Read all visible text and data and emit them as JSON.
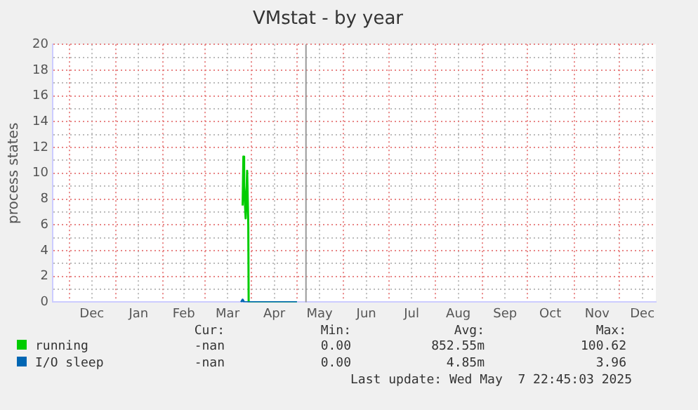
{
  "chart_data": {
    "type": "line",
    "title": "VMstat - by year",
    "ylabel": "process states",
    "xlim": [
      "2024-11-20",
      "2025-12-25"
    ],
    "xticks": [
      {
        "value": "2024-12-01",
        "label": null
      },
      {
        "value": "2024-12-16",
        "label": "Dec"
      },
      {
        "value": "2025-01-01",
        "label": null
      },
      {
        "value": "2025-01-16",
        "label": "Jan"
      },
      {
        "value": "2025-02-01",
        "label": null
      },
      {
        "value": "2025-02-15",
        "label": "Feb"
      },
      {
        "value": "2025-03-01",
        "label": null
      },
      {
        "value": "2025-03-16",
        "label": "Mar"
      },
      {
        "value": "2025-04-01",
        "label": null
      },
      {
        "value": "2025-04-16",
        "label": "Apr"
      },
      {
        "value": "2025-05-01",
        "label": null
      },
      {
        "value": "2025-05-16",
        "label": "May"
      },
      {
        "value": "2025-06-01",
        "label": null
      },
      {
        "value": "2025-06-16",
        "label": "Jun"
      },
      {
        "value": "2025-07-01",
        "label": null
      },
      {
        "value": "2025-07-16",
        "label": "Jul"
      },
      {
        "value": "2025-08-01",
        "label": null
      },
      {
        "value": "2025-08-16",
        "label": "Aug"
      },
      {
        "value": "2025-09-01",
        "label": null
      },
      {
        "value": "2025-09-16",
        "label": "Sep"
      },
      {
        "value": "2025-10-01",
        "label": null
      },
      {
        "value": "2025-10-16",
        "label": "Oct"
      },
      {
        "value": "2025-11-01",
        "label": null
      },
      {
        "value": "2025-11-16",
        "label": "Nov"
      },
      {
        "value": "2025-12-01",
        "label": null
      },
      {
        "value": "2025-12-16",
        "label": "Dec"
      }
    ],
    "ylim": [
      0,
      20
    ],
    "yticks": [
      0,
      {
        "value": 1,
        "label": null
      },
      2,
      {
        "value": 3,
        "label": null
      },
      4,
      {
        "value": 5,
        "label": null
      },
      6,
      {
        "value": 7,
        "label": null
      },
      8,
      {
        "value": 9,
        "label": null
      },
      10,
      {
        "value": 11,
        "label": null
      },
      12,
      {
        "value": 13,
        "label": null
      },
      14,
      {
        "value": 15,
        "label": null
      },
      16,
      {
        "value": 17,
        "label": null
      },
      18,
      {
        "value": 19,
        "label": null
      },
      20
    ],
    "grid": true,
    "legend": "bottom",
    "marker": "none",
    "line_style": "solid",
    "series": [
      {
        "name": "running",
        "color": "#00cc00",
        "x": [
          "2025-03-26",
          "2025-03-26T12:00",
          "2025-03-27",
          "2025-03-28",
          "2025-03-29",
          "2025-03-29T18:00",
          "2025-03-30",
          "2025-05-01"
        ],
        "values": [
          7.5,
          11.3,
          9,
          6.5,
          10.2,
          6,
          0,
          0
        ]
      },
      {
        "name": "I/O sleep",
        "color": "#0066b3",
        "x": [
          "2025-03-25",
          "2025-03-26",
          "2025-03-27",
          "2025-05-01"
        ],
        "values": [
          0,
          0.2,
          0,
          0
        ]
      }
    ],
    "ref_lines": [
      {
        "axis": "x",
        "value": "2025-05-07",
        "color": "#999999"
      }
    ],
    "annotations": [
      "Cur:",
      "Min:",
      "Avg:",
      "Max:",
      "-nan",
      "0.00",
      "852.55m",
      "100.62",
      "-nan",
      "0.00",
      "4.85m",
      "3.96",
      "Last update: Wed May  7 22:45:03 2025"
    ]
  }
}
